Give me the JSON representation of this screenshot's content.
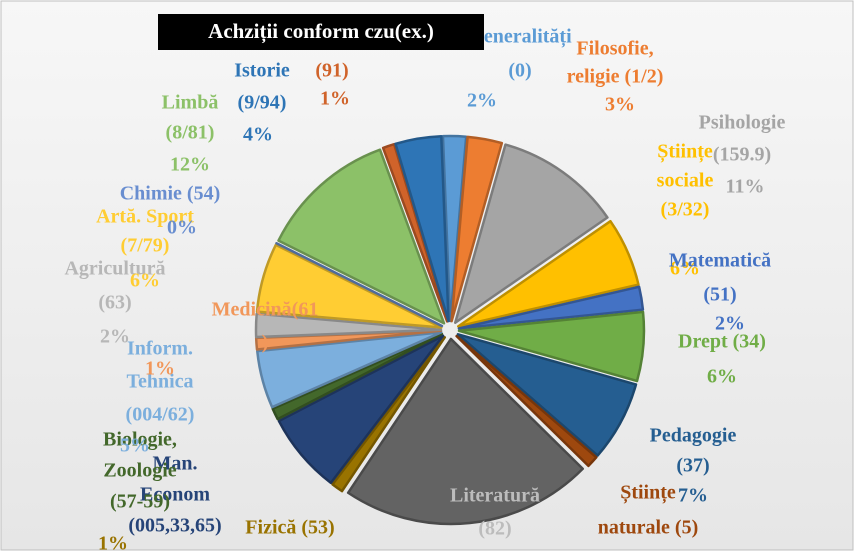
{
  "chart_data": {
    "type": "pie",
    "title": "Achziții conform czu(ex.)",
    "slices": [
      {
        "name_lines": [
          "Generalități",
          "(0)"
        ],
        "value": 2,
        "value_label": "2%",
        "color": "#5b9bd5"
      },
      {
        "name_lines": [
          "Filosofie,",
          "religie (1/2)"
        ],
        "value": 3,
        "value_label": "3%",
        "color": "#ed7d31"
      },
      {
        "name_lines": [
          "Psihologie",
          "(159.9)"
        ],
        "value": 11,
        "value_label": "11%",
        "color": "#a5a5a5"
      },
      {
        "name_lines": [
          "Științe",
          "sociale",
          "(3/32)"
        ],
        "value": 6,
        "value_label": "6%",
        "color": "#ffc000"
      },
      {
        "name_lines": [
          "Matematică",
          "(51)"
        ],
        "value": 2,
        "value_label": "2%",
        "color": "#4472c4"
      },
      {
        "name_lines": [
          "Drept (34)"
        ],
        "value": 6,
        "value_label": "6%",
        "color": "#70ad47"
      },
      {
        "name_lines": [
          "Pedagogie",
          "(37)"
        ],
        "value": 7,
        "value_label": "7%",
        "color": "#255e91"
      },
      {
        "name_lines": [
          "Științe",
          "naturale (5)"
        ],
        "value": 1,
        "color": "#9e480e"
      },
      {
        "name_lines": [
          "Literatură",
          "(82)"
        ],
        "value": 22,
        "color": "#636363"
      },
      {
        "name_lines": [
          "Fizică (53)"
        ],
        "value": 1,
        "value_label": "1%",
        "color": "#997300"
      },
      {
        "name_lines": [
          "Man.",
          "Econom",
          "(005,33,65)"
        ],
        "value": 7,
        "color": "#264478"
      },
      {
        "name_lines": [
          "Biologie,",
          "Zoologie",
          "(57-59)"
        ],
        "value": 1,
        "color": "#43682b"
      },
      {
        "name_lines": [
          "Inform.",
          "Tehnica",
          "(004/62)"
        ],
        "value": 5,
        "value_label": "5%",
        "color": "#7cafdd"
      },
      {
        "name_lines": [
          "Medicină(61",
          ")"
        ],
        "value": 1,
        "value_label": "1%",
        "color": "#f1975a"
      },
      {
        "name_lines": [
          "Agricultură",
          "(63)"
        ],
        "value": 2,
        "value_label": "2%",
        "color": "#b7b7b7"
      },
      {
        "name_lines": [
          "Artă. Sport",
          "(7/79)"
        ],
        "value": 6,
        "value_label": "6%",
        "color": "#ffcd33"
      },
      {
        "name_lines": [
          "Chimie (54)"
        ],
        "value": 0,
        "value_label": "0%",
        "color": "#698ed0"
      },
      {
        "name_lines": [
          "Limbă",
          "(8/81)"
        ],
        "value": 12,
        "value_label": "12%",
        "color": "#8cc168"
      },
      {
        "name_lines": [
          "(91)"
        ],
        "value": 1,
        "value_label": "1%",
        "color": "#d0632a"
      },
      {
        "name_lines": [
          "Istorie",
          "(9/94)"
        ],
        "value": 4,
        "value_label": "4%",
        "color": "#2e75b6"
      }
    ]
  }
}
